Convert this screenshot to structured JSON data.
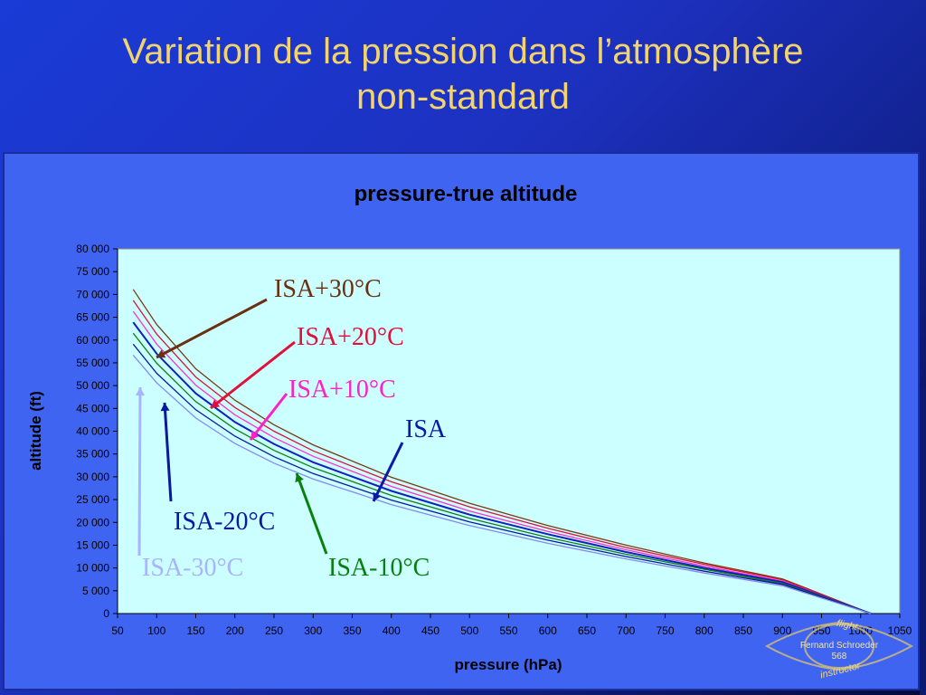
{
  "slide": {
    "title_line1": "Variation de la pression dans l’atmosphère",
    "title_line2": "non-standard"
  },
  "colors": {
    "background": "#1d31c0",
    "title": "#f3d36b",
    "panel": "#3f64f2",
    "plot_area": "#ccffff"
  },
  "chart_data": {
    "type": "line",
    "title": "pressure-true altitude",
    "xlabel": "pressure (hPa)",
    "ylabel": "altitude (ft)",
    "xlim": [
      50,
      1050
    ],
    "ylim": [
      0,
      80000
    ],
    "x_ticks": [
      "50",
      "100",
      "150",
      "200",
      "250",
      "300",
      "350",
      "400",
      "450",
      "500",
      "550",
      "600",
      "650",
      "700",
      "750",
      "800",
      "850",
      "900",
      "950",
      "1000",
      "1050"
    ],
    "y_ticks": [
      "0",
      "5 000",
      "10 000",
      "15 000",
      "20 000",
      "25 000",
      "30 000",
      "35 000",
      "40 000",
      "45 000",
      "50 000",
      "55 000",
      "60 000",
      "65 000",
      "70 000",
      "75 000",
      "80 000"
    ],
    "grid": false,
    "x": [
      70,
      100,
      150,
      200,
      250,
      300,
      400,
      500,
      600,
      700,
      800,
      900,
      1013
    ],
    "series": [
      {
        "name": "ISA+30°C",
        "color": "#7a3a10",
        "values": [
          71100,
          63400,
          53700,
          46800,
          41400,
          37000,
          29900,
          24200,
          19300,
          15000,
          11100,
          7600,
          0
        ]
      },
      {
        "name": "ISA+20°C",
        "color": "#e0103a",
        "values": [
          68700,
          61300,
          51900,
          45200,
          40000,
          35700,
          28900,
          23400,
          18700,
          14500,
          10800,
          7400,
          0
        ]
      },
      {
        "name": "ISA+10°C",
        "color": "#ff30d0",
        "values": [
          66300,
          59100,
          50100,
          43600,
          38600,
          34500,
          27900,
          22500,
          18000,
          14000,
          10400,
          7100,
          0
        ]
      },
      {
        "name": "ISA",
        "color": "#1020c0",
        "values": [
          63900,
          57000,
          48300,
          42000,
          37200,
          33200,
          26900,
          21700,
          17400,
          13500,
          10000,
          6900,
          0
        ]
      },
      {
        "name": "ISA-10°C",
        "color": "#108010",
        "values": [
          61500,
          54900,
          46500,
          40500,
          35800,
          32000,
          25900,
          20900,
          16700,
          13000,
          9700,
          6600,
          0
        ]
      },
      {
        "name": "ISA-20°C",
        "color": "#0818a0",
        "values": [
          59100,
          52700,
          44700,
          38900,
          34400,
          30700,
          24900,
          20100,
          16100,
          12500,
          9300,
          6400,
          0
        ]
      },
      {
        "name": "ISA-30°C",
        "color": "#8888ee",
        "values": [
          56700,
          50600,
          42900,
          37300,
          33000,
          29500,
          23900,
          19300,
          15400,
          12000,
          8900,
          6100,
          0
        ]
      }
    ],
    "annotations": [
      {
        "text": "ISA+30°C",
        "color": "#6a3010"
      },
      {
        "text": "ISA+20°C",
        "color": "#e0103a"
      },
      {
        "text": "ISA+10°C",
        "color": "#ff20c8"
      },
      {
        "text": "ISA",
        "color": "#0a1aa8"
      },
      {
        "text": "ISA-20°C",
        "color": "#0818a0"
      },
      {
        "text": "ISA-10°C",
        "color": "#088010"
      },
      {
        "text": "ISA-30°C",
        "color": "#a8b4ff"
      }
    ]
  },
  "badge": {
    "top": "flight",
    "name": "Fernand Schroeder",
    "number": "568",
    "bottom": "instructor"
  }
}
